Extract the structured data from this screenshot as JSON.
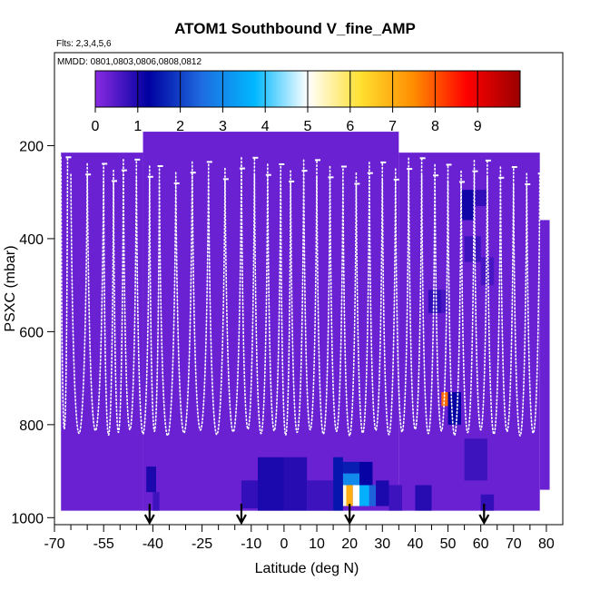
{
  "chart_data": {
    "type": "heatmap",
    "title": "ATOM1 Southbound V_fine_AMP",
    "flights_label": "Flts: 2,3,4,5,6",
    "dates_label": "MMDD: 0801,0803,0806,0808,0812",
    "xlabel": "Latitude (deg N)",
    "ylabel": "PSXC (mbar)",
    "xlim": [
      -70,
      85
    ],
    "ylim": [
      1015,
      0
    ],
    "x_ticks": [
      -70,
      -55,
      -40,
      -25,
      -10,
      0,
      10,
      20,
      30,
      40,
      50,
      60,
      70,
      80
    ],
    "x_tick_labels": [
      "-70",
      "-55",
      "-40",
      "-25",
      "-10",
      "0",
      "10",
      "20",
      "30",
      "40",
      "50",
      "60",
      "70",
      "80"
    ],
    "x_minor_ticks": [
      -65,
      -60,
      -50,
      -45,
      -35,
      -30,
      -20,
      -15,
      -5,
      5,
      15,
      25,
      35,
      45,
      55,
      65,
      75
    ],
    "y_ticks": [
      200,
      400,
      600,
      800,
      1000
    ],
    "y_tick_labels": [
      "200",
      "400",
      "600",
      "800",
      "1000"
    ],
    "colorbar": {
      "range": [
        0,
        10
      ],
      "ticks": [
        0,
        1,
        2,
        3,
        4,
        5,
        6,
        7,
        8,
        9
      ],
      "tick_labels": [
        "0",
        "1",
        "2",
        "3",
        "4",
        "5",
        "6",
        "7",
        "8",
        "9"
      ],
      "colors": [
        "#8a2be2",
        "#0000a0",
        "#1e6be0",
        "#00b8ff",
        "#ffffff",
        "#ffe030",
        "#ff8c00",
        "#ff0000",
        "#9a0000"
      ]
    },
    "background_value": 0.3,
    "domain_regions": [
      {
        "lat": [
          -68,
          -43
        ],
        "p": [
          215,
          985
        ]
      },
      {
        "lat": [
          -43,
          35
        ],
        "p": [
          170,
          985
        ]
      },
      {
        "lat": [
          35,
          78
        ],
        "p": [
          215,
          985
        ]
      },
      {
        "lat": [
          78,
          81
        ],
        "p": [
          360,
          940
        ]
      }
    ],
    "cells": [
      {
        "lat": [
          -42,
          -39
        ],
        "p": [
          890,
          945
        ],
        "v": 1.0
      },
      {
        "lat": [
          -40,
          -38
        ],
        "p": [
          945,
          985
        ],
        "v": 0.7
      },
      {
        "lat": [
          -13,
          -8
        ],
        "p": [
          920,
          980
        ],
        "v": 0.8
      },
      {
        "lat": [
          -8,
          0
        ],
        "p": [
          870,
          985
        ],
        "v": 1.0
      },
      {
        "lat": [
          0,
          7
        ],
        "p": [
          870,
          985
        ],
        "v": 0.9
      },
      {
        "lat": [
          7,
          15
        ],
        "p": [
          920,
          985
        ],
        "v": 0.7
      },
      {
        "lat": [
          15,
          18
        ],
        "p": [
          870,
          985
        ],
        "v": 1.5
      },
      {
        "lat": [
          18,
          23
        ],
        "p": [
          880,
          905
        ],
        "v": 1.6
      },
      {
        "lat": [
          18,
          23
        ],
        "p": [
          905,
          930
        ],
        "v": 3.0
      },
      {
        "lat": [
          18,
          19
        ],
        "p": [
          930,
          975
        ],
        "v": 5.2
      },
      {
        "lat": [
          19,
          21
        ],
        "p": [
          930,
          975
        ],
        "v": 7.0
      },
      {
        "lat": [
          21,
          23
        ],
        "p": [
          930,
          975
        ],
        "v": 5.0
      },
      {
        "lat": [
          23,
          26
        ],
        "p": [
          930,
          975
        ],
        "v": 3.6
      },
      {
        "lat": [
          23,
          27
        ],
        "p": [
          880,
          930
        ],
        "v": 1.2
      },
      {
        "lat": [
          26,
          28
        ],
        "p": [
          930,
          975
        ],
        "v": 2.4
      },
      {
        "lat": [
          28,
          32
        ],
        "p": [
          920,
          975
        ],
        "v": 1.0
      },
      {
        "lat": [
          32,
          36
        ],
        "p": [
          930,
          985
        ],
        "v": 0.7
      },
      {
        "lat": [
          40,
          45
        ],
        "p": [
          930,
          985
        ],
        "v": 0.9
      },
      {
        "lat": [
          44,
          48
        ],
        "p": [
          510,
          560
        ],
        "v": 0.8
      },
      {
        "lat": [
          48,
          50
        ],
        "p": [
          510,
          560
        ],
        "v": 0.6
      },
      {
        "lat": [
          48,
          50
        ],
        "p": [
          730,
          760
        ],
        "v": 7.8
      },
      {
        "lat": [
          50,
          54
        ],
        "p": [
          730,
          800
        ],
        "v": 1.2
      },
      {
        "lat": [
          54,
          58
        ],
        "p": [
          295,
          360
        ],
        "v": 1.1
      },
      {
        "lat": [
          58,
          62
        ],
        "p": [
          295,
          330
        ],
        "v": 0.8
      },
      {
        "lat": [
          55,
          60
        ],
        "p": [
          395,
          450
        ],
        "v": 0.7
      },
      {
        "lat": [
          60,
          64
        ],
        "p": [
          440,
          500
        ],
        "v": 0.6
      },
      {
        "lat": [
          55,
          62
        ],
        "p": [
          830,
          920
        ],
        "v": 0.7
      },
      {
        "lat": [
          60,
          64
        ],
        "p": [
          950,
          985
        ],
        "v": 0.8
      }
    ],
    "flight_profiles": [
      [
        -68,
        -66
      ],
      [
        -65,
        -60
      ],
      [
        -60,
        -55
      ],
      [
        -55,
        -52
      ],
      [
        -52,
        -49
      ],
      [
        -49,
        -45
      ],
      [
        -45,
        -41
      ],
      [
        -41,
        -38
      ],
      [
        -38,
        -33
      ],
      [
        -33,
        -28
      ],
      [
        -28,
        -23
      ],
      [
        -23,
        -18
      ],
      [
        -18,
        -13
      ],
      [
        -13,
        -9
      ],
      [
        -9,
        -5
      ],
      [
        -5,
        -1
      ],
      [
        -1,
        2
      ],
      [
        2,
        6
      ],
      [
        6,
        10
      ],
      [
        10,
        14
      ],
      [
        14,
        18
      ],
      [
        18,
        22
      ],
      [
        22,
        26
      ],
      [
        26,
        30
      ],
      [
        30,
        34
      ],
      [
        34,
        38
      ],
      [
        38,
        42
      ],
      [
        42,
        46
      ],
      [
        46,
        50
      ],
      [
        50,
        54
      ],
      [
        54,
        58
      ],
      [
        58,
        62
      ],
      [
        62,
        66
      ],
      [
        66,
        70
      ],
      [
        70,
        74
      ],
      [
        74,
        78
      ]
    ],
    "arrows_lat": [
      -41,
      -13,
      20,
      61
    ]
  }
}
